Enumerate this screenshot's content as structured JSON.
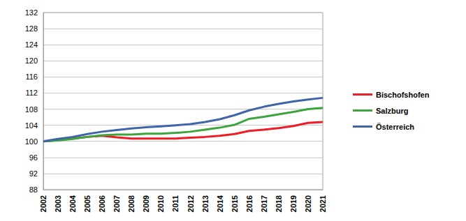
{
  "chart_data": {
    "type": "line",
    "categories": [
      "2002",
      "2003",
      "2004",
      "2005",
      "2006",
      "2007",
      "2008",
      "2009",
      "2010",
      "2011",
      "2012",
      "2013",
      "2014",
      "2015",
      "2016",
      "2017",
      "2018",
      "2019",
      "2020",
      "2021"
    ],
    "series": [
      {
        "name": "Bischofshofen",
        "color": "#ee1c25",
        "values": [
          100,
          100.3,
          100.7,
          101.1,
          101.4,
          101.0,
          100.7,
          100.7,
          100.7,
          100.7,
          100.9,
          101.1,
          101.4,
          101.8,
          102.6,
          102.9,
          103.3,
          103.8,
          104.6,
          104.8
        ]
      },
      {
        "name": "Salzburg",
        "color": "#3ca53c",
        "values": [
          100,
          100.2,
          100.6,
          101.1,
          101.5,
          101.7,
          101.7,
          101.9,
          101.9,
          102.1,
          102.4,
          102.9,
          103.4,
          104.1,
          105.6,
          106.1,
          106.7,
          107.3,
          108.0,
          108.3
        ]
      },
      {
        "name": "Österreich",
        "color": "#3f64a8",
        "values": [
          100,
          100.6,
          101.1,
          101.8,
          102.4,
          102.8,
          103.2,
          103.5,
          103.7,
          104.0,
          104.3,
          104.8,
          105.5,
          106.5,
          107.7,
          108.6,
          109.3,
          109.9,
          110.4,
          110.8
        ]
      }
    ],
    "ylim": [
      88,
      132
    ],
    "yticks": [
      88,
      92,
      96,
      100,
      104,
      108,
      112,
      116,
      120,
      124,
      128,
      132
    ],
    "grid": true,
    "legend": "right",
    "marker": "none",
    "line_style": "solid"
  }
}
